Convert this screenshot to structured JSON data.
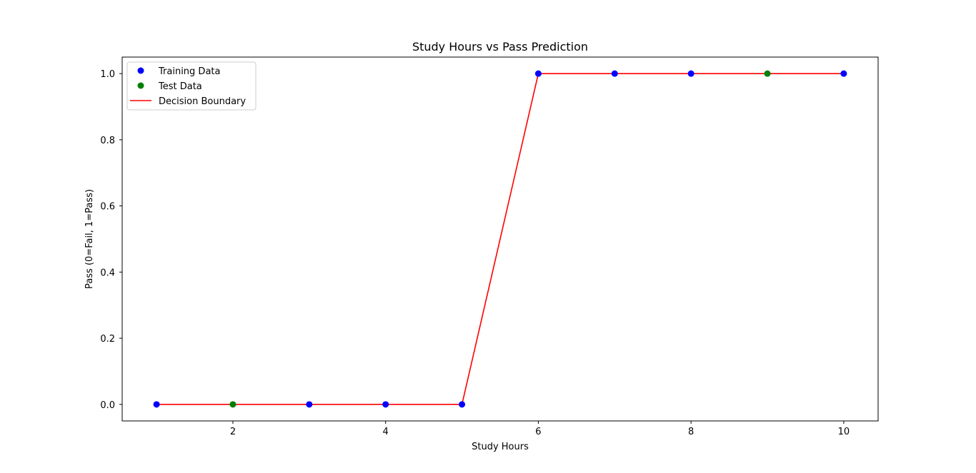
{
  "chart_data": {
    "type": "scatter",
    "title": "Study Hours vs Pass Prediction",
    "xlabel": "Study Hours",
    "ylabel": "Pass (0=Fail, 1=Pass)",
    "xlim": [
      0.55,
      10.45
    ],
    "ylim": [
      -0.05,
      1.05
    ],
    "xticks": [
      2,
      4,
      6,
      8,
      10
    ],
    "yticks": [
      0.0,
      0.2,
      0.4,
      0.6,
      0.8,
      1.0
    ],
    "xtick_labels": [
      "2",
      "4",
      "6",
      "8",
      "10"
    ],
    "ytick_labels": [
      "0.0",
      "0.2",
      "0.4",
      "0.6",
      "0.8",
      "1.0"
    ],
    "grid": false,
    "legend_position": "top-left",
    "series": [
      {
        "name": "Training Data",
        "kind": "scatter",
        "color": "#0000ff",
        "x": [
          1,
          3,
          4,
          5,
          6,
          7,
          8,
          10
        ],
        "y": [
          0,
          0,
          0,
          0,
          1,
          1,
          1,
          1
        ]
      },
      {
        "name": "Test Data",
        "kind": "scatter",
        "color": "#008000",
        "x": [
          2,
          9
        ],
        "y": [
          0,
          1
        ]
      },
      {
        "name": "Decision Boundary",
        "kind": "line",
        "color": "#ff0000",
        "x": [
          1,
          2,
          3,
          4,
          5,
          6,
          7,
          8,
          9,
          10
        ],
        "y": [
          0,
          0,
          0,
          0,
          0,
          1,
          1,
          1,
          1,
          1
        ]
      }
    ]
  }
}
